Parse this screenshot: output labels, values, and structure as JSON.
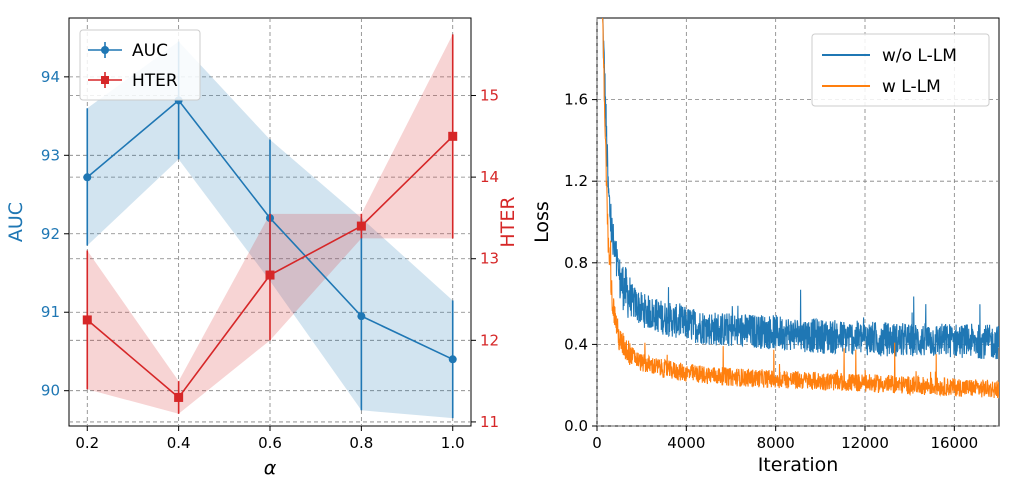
{
  "chart_data": [
    {
      "type": "line",
      "xlabel": "α",
      "x": [
        0.2,
        0.4,
        0.6,
        0.8,
        1.0
      ],
      "xticks": [
        "0.2",
        "0.4",
        "0.6",
        "0.8",
        "1.0"
      ],
      "xlim": [
        0.16,
        1.04
      ],
      "grid": true,
      "legend_position": "top-left",
      "series": [
        {
          "name": "AUC",
          "axis": "left",
          "marker": "circle",
          "color": "#1f77b4",
          "values": [
            92.72,
            93.7,
            92.2,
            90.95,
            90.4
          ],
          "band_lower": [
            91.85,
            92.95,
            91.4,
            89.75,
            89.65
          ],
          "band_upper": [
            93.6,
            94.45,
            93.2,
            92.2,
            91.15
          ]
        },
        {
          "name": "HTER",
          "axis": "right",
          "marker": "square",
          "color": "#d62728",
          "values": [
            12.25,
            11.3,
            12.8,
            13.4,
            14.5
          ],
          "band_lower": [
            11.4,
            11.1,
            12.0,
            13.25,
            13.25
          ],
          "band_upper": [
            13.1,
            11.5,
            13.55,
            13.55,
            15.75
          ]
        }
      ],
      "y_left": {
        "label": "AUC",
        "ylim": [
          89.55,
          94.75
        ],
        "ticks": [
          "90",
          "91",
          "92",
          "93",
          "94"
        ],
        "color": "#1f77b4"
      },
      "y_right": {
        "label": "HTER",
        "ylim": [
          10.95,
          15.95
        ],
        "ticks": [
          "11",
          "12",
          "13",
          "14",
          "15"
        ],
        "color": "#d62728"
      }
    },
    {
      "type": "line",
      "xlabel": "Iteration",
      "ylabel": "Loss",
      "xlim": [
        0,
        18000
      ],
      "ylim": [
        0,
        2.0
      ],
      "xticks": [
        "0",
        "4000",
        "8000",
        "12000",
        "16000"
      ],
      "yticks": [
        "0.0",
        "0.4",
        "0.8",
        "1.2",
        "1.6"
      ],
      "grid": true,
      "legend_position": "top-right",
      "series": [
        {
          "name": "w/o L-LM",
          "color": "#1f77b4",
          "x": [
            250,
            400,
            500,
            700,
            1000,
            1500,
            2000,
            3000,
            4000,
            5000,
            6000,
            8000,
            10000,
            12000,
            14000,
            16000,
            18000
          ],
          "values": [
            2.0,
            1.5,
            1.15,
            0.9,
            0.72,
            0.62,
            0.57,
            0.53,
            0.5,
            0.48,
            0.47,
            0.46,
            0.44,
            0.43,
            0.42,
            0.42,
            0.41
          ]
        },
        {
          "name": "w L-LM",
          "color": "#ff7f0e",
          "x": [
            250,
            400,
            500,
            700,
            1000,
            1500,
            2000,
            3000,
            4000,
            5000,
            6000,
            8000,
            10000,
            12000,
            14000,
            16000,
            18000
          ],
          "values": [
            2.0,
            1.3,
            0.9,
            0.6,
            0.42,
            0.35,
            0.31,
            0.28,
            0.26,
            0.25,
            0.24,
            0.23,
            0.22,
            0.21,
            0.2,
            0.19,
            0.18
          ]
        }
      ]
    }
  ]
}
